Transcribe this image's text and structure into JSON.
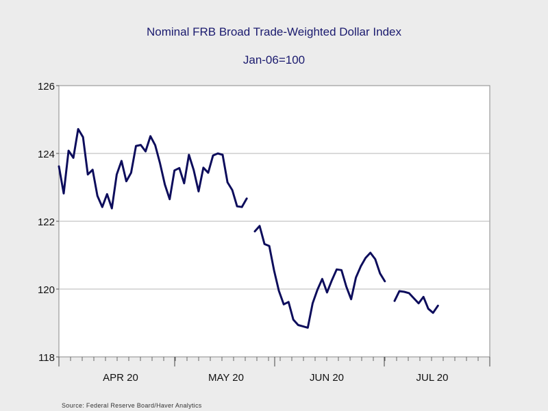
{
  "chart_data": {
    "type": "line",
    "title": "Nominal FRB Broad Trade-Weighted Dollar Index",
    "subtitle": "Jan-06=100",
    "ylim": [
      118,
      126
    ],
    "yticks": [
      "126",
      "124",
      "122",
      "120",
      "118"
    ],
    "x_labels": [
      "APR 20",
      "MAY 20",
      "JUN 20",
      "JUL 20"
    ],
    "grid": true,
    "line_color": "#0d0d5c",
    "source": "Source:  Federal Reserve Board/Haver Analytics",
    "segments": [
      [
        123.62,
        122.82,
        124.08,
        123.87,
        124.72,
        124.48,
        123.38,
        123.52,
        122.75,
        122.42,
        122.8,
        122.38,
        123.38,
        123.78,
        123.18,
        123.43,
        124.22,
        124.25,
        124.06,
        124.51,
        124.24,
        123.71,
        123.08,
        122.65,
        123.5,
        123.57,
        123.12,
        123.96,
        123.51,
        122.88,
        123.58,
        123.43,
        123.94,
        124.0,
        123.96,
        123.15,
        122.92,
        122.44,
        122.42,
        122.67
      ],
      [
        121.7,
        121.86,
        121.33,
        121.27,
        120.55,
        119.95,
        119.55,
        119.62,
        119.1,
        118.94,
        118.9,
        118.86,
        119.58,
        119.98,
        120.3,
        119.9,
        120.26,
        120.58,
        120.56,
        120.07,
        119.7,
        120.34,
        120.67,
        120.92,
        121.07,
        120.88,
        120.46,
        120.23
      ],
      [
        119.65,
        119.94,
        119.92,
        119.88,
        119.73,
        119.58,
        119.77,
        119.42,
        119.3,
        119.51
      ]
    ]
  }
}
